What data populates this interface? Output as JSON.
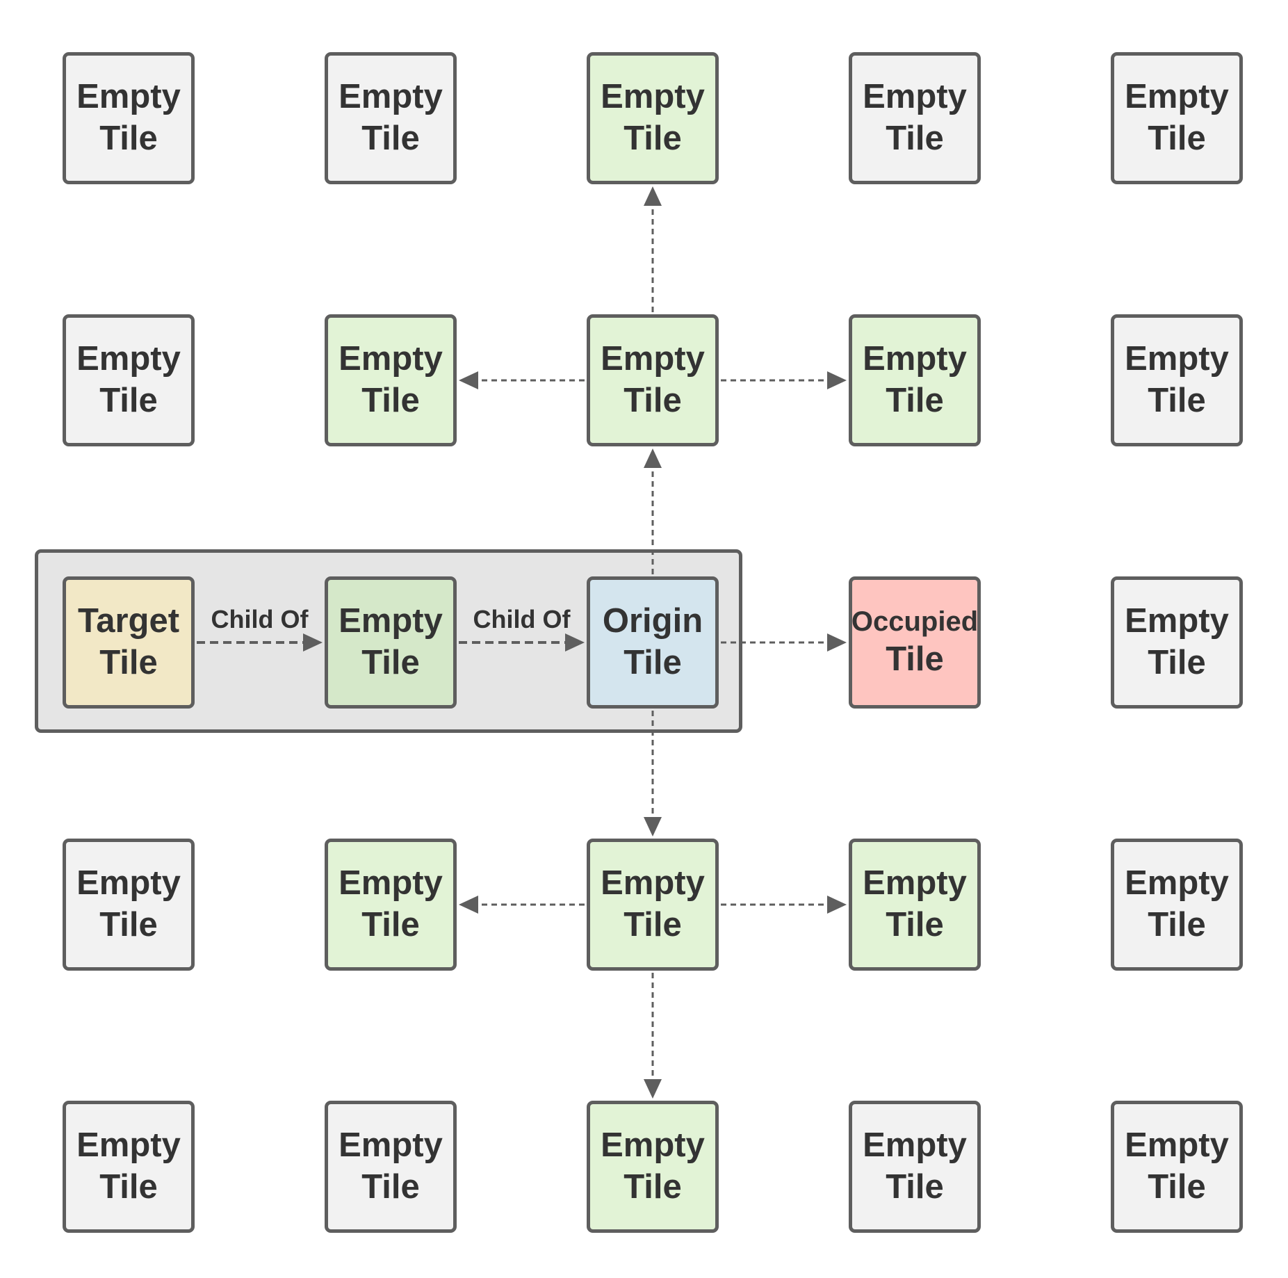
{
  "colors": {
    "empty": "#f2f2f2",
    "explored": "#e2f3d6",
    "path": "#d5e8c9",
    "target": "#f2e8c6",
    "origin": "#d4e5ee",
    "occupied": "#fec5c0",
    "border": "#5e5e5e",
    "text": "#333333"
  },
  "tiles": [
    {
      "id": "r0c0",
      "row": 0,
      "col": 0,
      "kind": "empty",
      "line1": "Empty",
      "line2": "Tile"
    },
    {
      "id": "r0c1",
      "row": 0,
      "col": 1,
      "kind": "empty",
      "line1": "Empty",
      "line2": "Tile"
    },
    {
      "id": "r0c2",
      "row": 0,
      "col": 2,
      "kind": "explored",
      "line1": "Empty",
      "line2": "Tile"
    },
    {
      "id": "r0c3",
      "row": 0,
      "col": 3,
      "kind": "empty",
      "line1": "Empty",
      "line2": "Tile"
    },
    {
      "id": "r0c4",
      "row": 0,
      "col": 4,
      "kind": "empty",
      "line1": "Empty",
      "line2": "Tile"
    },
    {
      "id": "r1c0",
      "row": 1,
      "col": 0,
      "kind": "empty",
      "line1": "Empty",
      "line2": "Tile"
    },
    {
      "id": "r1c1",
      "row": 1,
      "col": 1,
      "kind": "explored",
      "line1": "Empty",
      "line2": "Tile"
    },
    {
      "id": "r1c2",
      "row": 1,
      "col": 2,
      "kind": "explored",
      "line1": "Empty",
      "line2": "Tile"
    },
    {
      "id": "r1c3",
      "row": 1,
      "col": 3,
      "kind": "explored",
      "line1": "Empty",
      "line2": "Tile"
    },
    {
      "id": "r1c4",
      "row": 1,
      "col": 4,
      "kind": "empty",
      "line1": "Empty",
      "line2": "Tile"
    },
    {
      "id": "r2c0",
      "row": 2,
      "col": 0,
      "kind": "target",
      "line1": "Target",
      "line2": "Tile"
    },
    {
      "id": "r2c1",
      "row": 2,
      "col": 1,
      "kind": "path",
      "line1": "Empty",
      "line2": "Tile"
    },
    {
      "id": "r2c2",
      "row": 2,
      "col": 2,
      "kind": "origin",
      "line1": "Origin",
      "line2": "Tile"
    },
    {
      "id": "r2c3",
      "row": 2,
      "col": 3,
      "kind": "occupied",
      "line1": "Occupied",
      "line2": "Tile"
    },
    {
      "id": "r2c4",
      "row": 2,
      "col": 4,
      "kind": "empty",
      "line1": "Empty",
      "line2": "Tile"
    },
    {
      "id": "r3c0",
      "row": 3,
      "col": 0,
      "kind": "empty",
      "line1": "Empty",
      "line2": "Tile"
    },
    {
      "id": "r3c1",
      "row": 3,
      "col": 1,
      "kind": "explored",
      "line1": "Empty",
      "line2": "Tile"
    },
    {
      "id": "r3c2",
      "row": 3,
      "col": 2,
      "kind": "explored",
      "line1": "Empty",
      "line2": "Tile"
    },
    {
      "id": "r3c3",
      "row": 3,
      "col": 3,
      "kind": "explored",
      "line1": "Empty",
      "line2": "Tile"
    },
    {
      "id": "r3c4",
      "row": 3,
      "col": 4,
      "kind": "empty",
      "line1": "Empty",
      "line2": "Tile"
    },
    {
      "id": "r4c0",
      "row": 4,
      "col": 0,
      "kind": "empty",
      "line1": "Empty",
      "line2": "Tile"
    },
    {
      "id": "r4c1",
      "row": 4,
      "col": 1,
      "kind": "empty",
      "line1": "Empty",
      "line2": "Tile"
    },
    {
      "id": "r4c2",
      "row": 4,
      "col": 2,
      "kind": "explored",
      "line1": "Empty",
      "line2": "Tile"
    },
    {
      "id": "r4c3",
      "row": 4,
      "col": 3,
      "kind": "empty",
      "line1": "Empty",
      "line2": "Tile"
    },
    {
      "id": "r4c4",
      "row": 4,
      "col": 4,
      "kind": "empty",
      "line1": "Empty",
      "line2": "Tile"
    }
  ],
  "edges": [
    {
      "from": "r1c2",
      "to": "r0c2",
      "style": "fine"
    },
    {
      "from": "r1c2",
      "to": "r1c1",
      "style": "fine"
    },
    {
      "from": "r1c2",
      "to": "r1c3",
      "style": "fine"
    },
    {
      "from": "r2c2",
      "to": "r1c2",
      "style": "fine"
    },
    {
      "from": "r2c2",
      "to": "r2c3",
      "style": "fine"
    },
    {
      "from": "r2c2",
      "to": "r3c2",
      "style": "fine"
    },
    {
      "from": "r3c2",
      "to": "r3c1",
      "style": "fine"
    },
    {
      "from": "r3c2",
      "to": "r3c3",
      "style": "fine"
    },
    {
      "from": "r3c2",
      "to": "r4c2",
      "style": "fine"
    },
    {
      "from": "r2c0",
      "to": "r2c1",
      "style": "bold",
      "label": "Child Of"
    },
    {
      "from": "r2c1",
      "to": "r2c2",
      "style": "bold",
      "label": "Child Of"
    }
  ]
}
